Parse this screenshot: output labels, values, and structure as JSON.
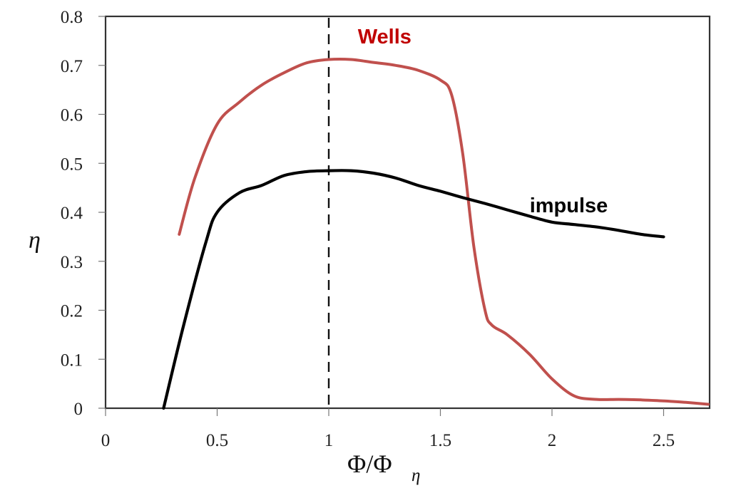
{
  "chart_data": {
    "type": "line",
    "title": "",
    "xlabel": "Φ/Φ_η",
    "xlabel_main": "Φ/Φ",
    "xlabel_sub": "η",
    "ylabel": "η",
    "xlim": [
      0,
      2.72
    ],
    "ylim": [
      0,
      0.8
    ],
    "xticks": [
      0,
      0.5,
      1,
      1.5,
      2,
      2.5
    ],
    "xtick_labels": [
      "0",
      "0.5",
      "1",
      "1.5",
      "2",
      "2.5"
    ],
    "yticks": [
      0,
      0.1,
      0.2,
      0.3,
      0.4,
      0.5,
      0.6,
      0.7,
      0.8
    ],
    "ytick_labels": [
      "0",
      "0.1",
      "0.2",
      "0.3",
      "0.4",
      "0.5",
      "0.6",
      "0.7",
      "0.8"
    ],
    "grid": false,
    "legend": "inline labels",
    "reference_line": {
      "x": 1,
      "style": "dashed",
      "color": "#111111"
    },
    "series": [
      {
        "name": "Wells",
        "color": "#c0504d",
        "label_color": "#c00000",
        "label_pos": [
          1.13,
          0.745
        ],
        "x": [
          0.33,
          0.4,
          0.5,
          0.6,
          0.7,
          0.8,
          0.9,
          1.0,
          1.1,
          1.2,
          1.3,
          1.4,
          1.5,
          1.55,
          1.6,
          1.65,
          1.7,
          1.73,
          1.8,
          1.9,
          2.0,
          2.1,
          2.2,
          2.3,
          2.4,
          2.5,
          2.6,
          2.7
        ],
        "values": [
          0.355,
          0.47,
          0.58,
          0.625,
          0.66,
          0.685,
          0.705,
          0.712,
          0.712,
          0.706,
          0.7,
          0.69,
          0.67,
          0.64,
          0.52,
          0.33,
          0.2,
          0.17,
          0.15,
          0.11,
          0.06,
          0.025,
          0.018,
          0.018,
          0.017,
          0.015,
          0.012,
          0.008
        ]
      },
      {
        "name": "impulse",
        "color": "#000000",
        "label_color": "#000000",
        "label_pos": [
          1.9,
          0.4
        ],
        "x": [
          0.26,
          0.35,
          0.45,
          0.5,
          0.6,
          0.7,
          0.8,
          0.9,
          1.0,
          1.1,
          1.2,
          1.3,
          1.4,
          1.5,
          1.6,
          1.7,
          1.8,
          1.9,
          2.0,
          2.1,
          2.2,
          2.3,
          2.4,
          2.5
        ],
        "values": [
          0.0,
          0.17,
          0.34,
          0.4,
          0.44,
          0.455,
          0.475,
          0.483,
          0.485,
          0.485,
          0.48,
          0.47,
          0.455,
          0.443,
          0.43,
          0.418,
          0.405,
          0.392,
          0.38,
          0.375,
          0.37,
          0.363,
          0.355,
          0.35
        ]
      }
    ]
  }
}
